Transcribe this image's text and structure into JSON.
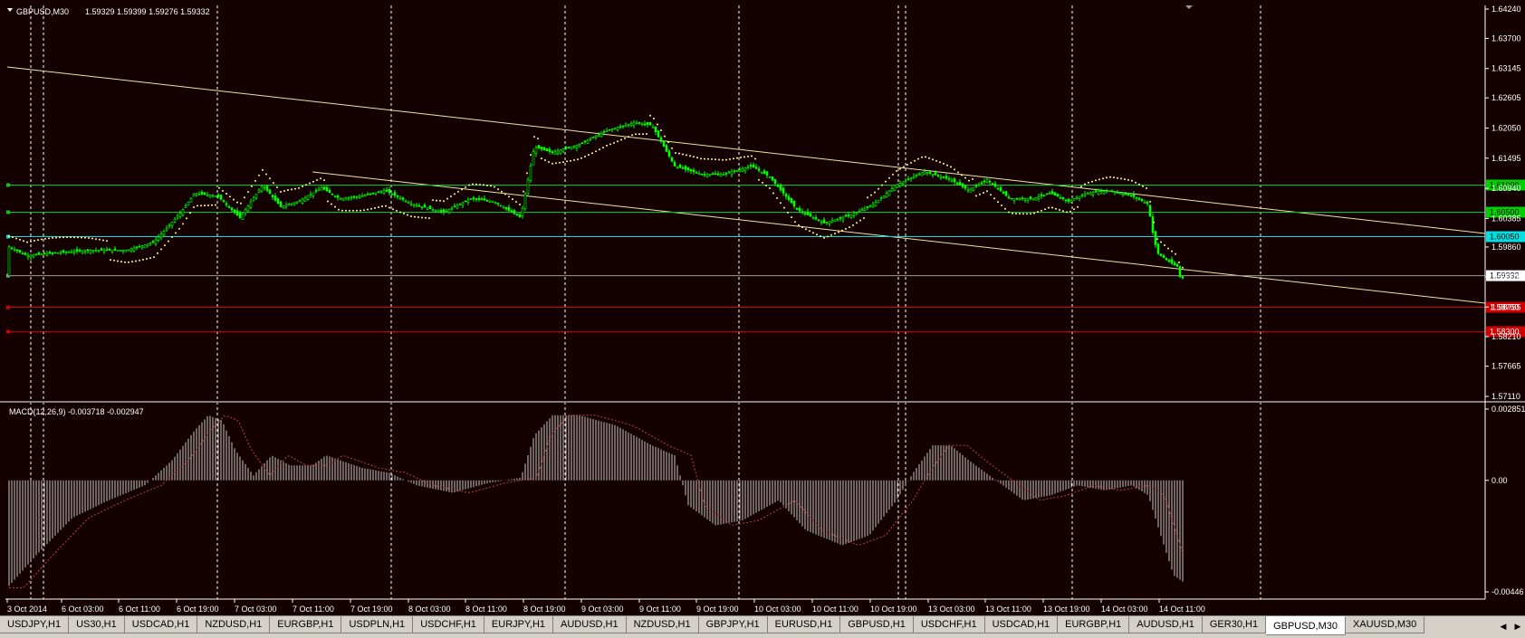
{
  "header": {
    "symbol_label": "GBPUSD,M30",
    "ohlc": "1.59329 1.59399 1.59276 1.59332"
  },
  "macd": {
    "label": "MACD(12,26,9) -0.003718 -0.002947"
  },
  "price_axis": {
    "ticks": [
      "1.64240",
      "1.63700",
      "1.63145",
      "1.62605",
      "1.62050",
      "1.61495",
      "1.60940",
      "1.60385",
      "1.59860",
      "1.59310",
      "1.58755",
      "1.58210",
      "1.57665",
      "1.57110"
    ]
  },
  "macd_axis": {
    "ticks": [
      "0.002851",
      "0.00",
      "-0.00446"
    ]
  },
  "levels": [
    {
      "price": 1.61,
      "label": "1.61000",
      "color": "#00d000"
    },
    {
      "price": 1.605,
      "label": "1.60500",
      "color": "#00d000"
    },
    {
      "price": 1.6005,
      "label": "1.60050",
      "color": "#00e0e0"
    },
    {
      "price": 1.59332,
      "label": "1.59332",
      "color": "#9a9a9a"
    },
    {
      "price": 1.5875,
      "label": "1.58750",
      "color": "#d00000"
    },
    {
      "price": 1.583,
      "label": "1.58300",
      "color": "#d00000"
    }
  ],
  "time_axis": {
    "labels": [
      "3 Oct 2014",
      "6 Oct 03:00",
      "6 Oct 11:00",
      "6 Oct 19:00",
      "7 Oct 03:00",
      "7 Oct 11:00",
      "7 Oct 19:00",
      "8 Oct 03:00",
      "8 Oct 11:00",
      "8 Oct 19:00",
      "9 Oct 03:00",
      "9 Oct 11:00",
      "9 Oct 19:00",
      "10 Oct 03:00",
      "10 Oct 11:00",
      "10 Oct 19:00",
      "13 Oct 03:00",
      "13 Oct 11:00",
      "13 Oct 19:00",
      "14 Oct 03:00",
      "14 Oct 11:00"
    ]
  },
  "tabs": [
    {
      "label": "USDJPY,H1",
      "active": false
    },
    {
      "label": "US30,H1",
      "active": false
    },
    {
      "label": "USDCAD,H1",
      "active": false
    },
    {
      "label": "NZDUSD,H1",
      "active": false
    },
    {
      "label": "EURGBP,H1",
      "active": false
    },
    {
      "label": "USDPLN,H1",
      "active": false
    },
    {
      "label": "USDCHF,H1",
      "active": false
    },
    {
      "label": "EURJPY,H1",
      "active": false
    },
    {
      "label": "AUDUSD,H1",
      "active": false
    },
    {
      "label": "NZDUSD,H1",
      "active": false
    },
    {
      "label": "GBPJPY,H1",
      "active": false
    },
    {
      "label": "EURUSD,H1",
      "active": false
    },
    {
      "label": "GBPUSD,H1",
      "active": false
    },
    {
      "label": "USDCHF,H1",
      "active": false
    },
    {
      "label": "USDCAD,H1",
      "active": false
    },
    {
      "label": "EURGBP,H1",
      "active": false
    },
    {
      "label": "AUDUSD,H1",
      "active": false
    },
    {
      "label": "GER30,H1",
      "active": false
    },
    {
      "label": "GBPUSD,M30",
      "active": true
    },
    {
      "label": "XAUUSD,M30",
      "active": false
    }
  ],
  "colors": {
    "background": "#140000",
    "bull_candle": "#00ff00",
    "bear_candle": "#00ff00",
    "sar_dots": "#ffff80",
    "trendline": "#e8e8a0",
    "macd_hist": "#c8c8c8",
    "macd_signal": "#c04040"
  }
}
